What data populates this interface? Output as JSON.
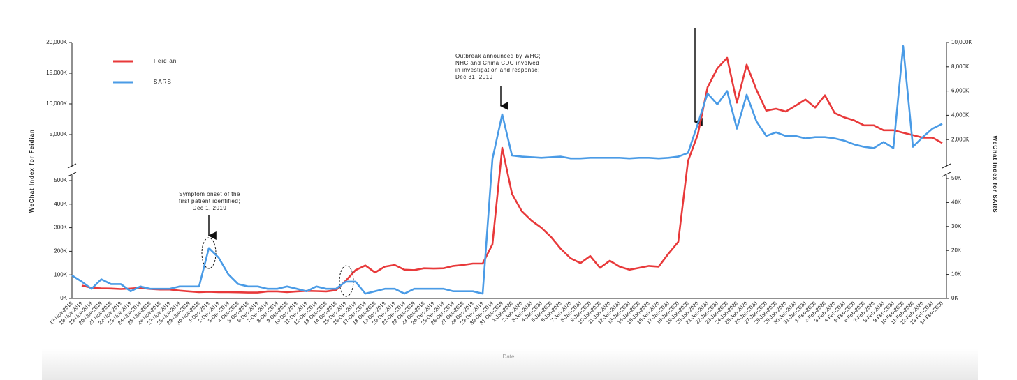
{
  "chart_data": {
    "type": "line",
    "x_label": "Date",
    "y_label": "WeChat Index for Feidian",
    "y2_label": "WeChat Index for SARS",
    "categories": [
      "17-Nov-2019",
      "18-Nov-2019",
      "19-Nov-2019",
      "20-Nov-2019",
      "21-Nov-2019",
      "22-Nov-2019",
      "23-Nov-2019",
      "24-Nov-2019",
      "25-Nov-2019",
      "26-Nov-2019",
      "27-Nov-2019",
      "28-Nov-2019",
      "29-Nov-2019",
      "30-Nov-2019",
      "1-Dec-2019",
      "2-Dec-2019",
      "3-Dec-2019",
      "4-Dec-2019",
      "5-Dec-2019",
      "6-Dec-2019",
      "7-Dec-2019",
      "8-Dec-2019",
      "9-Dec-2019",
      "10-Dec-2019",
      "11-Dec-2019",
      "12-Dec-2019",
      "13-Dec-2019",
      "14-Dec-2019",
      "15-Dec-2019",
      "16-Dec-2019",
      "17-Dec-2019",
      "18-Dec-2019",
      "19-Dec-2019",
      "20-Dec-2019",
      "21-Dec-2019",
      "22-Dec-2019",
      "23-Dec-2019",
      "24-Dec-2019",
      "25-Dec-2019",
      "26-Dec-2019",
      "27-Dec-2019",
      "28-Dec-2019",
      "29-Dec-2019",
      "30-Dec-2019",
      "31-Dec-2019",
      "1-Jan-2020",
      "2-Jan-2020",
      "3-Jan-2020",
      "4-Jan-2020",
      "5-Jan-2020",
      "6-Jan-2020",
      "7-Jan-2020",
      "8-Jan-2020",
      "9-Jan-2020",
      "10-Jan-2020",
      "11-Jan-2020",
      "12-Jan-2020",
      "13-Jan-2020",
      "14-Jan-2020",
      "15-Jan-2020",
      "16-Jan-2020",
      "17-Jan-2020",
      "18-Jan-2020",
      "19-Jan-2020",
      "20-Jan-2020",
      "21-Jan-2020",
      "22-Jan-2020",
      "23-Jan-2020",
      "24-Jan-2020",
      "25-Jan-2020",
      "26-Jan-2020",
      "27-Jan-2020",
      "28-Jan-2020",
      "29-Jan-2020",
      "30-Jan-2020",
      "31-Jan-2020",
      "1-Feb-2020",
      "2-Feb-2020",
      "3-Feb-2020",
      "4-Feb-2020",
      "5-Feb-2020",
      "6-Feb-2020",
      "7-Feb-2020",
      "8-Feb-2020",
      "9-Feb-2020",
      "10-Feb-2020",
      "11-Feb-2020",
      "12-Feb-2020",
      "13-Feb-2020",
      "14-Feb-2020"
    ],
    "series": [
      {
        "name": "Feidian",
        "color": "#e8393a",
        "axis": "y",
        "values": [
          null,
          55000,
          45000,
          43000,
          42000,
          40000,
          42000,
          45000,
          40000,
          38000,
          38000,
          33000,
          30000,
          27000,
          28000,
          27000,
          27000,
          26000,
          25000,
          25000,
          30000,
          30000,
          27000,
          30000,
          32000,
          31000,
          30000,
          35000,
          75000,
          120000,
          140000,
          110000,
          135000,
          142000,
          122000,
          120000,
          128000,
          127000,
          128000,
          138000,
          142000,
          148000,
          148000,
          230000,
          2840000,
          444000,
          370000,
          330000,
          300000,
          260000,
          210000,
          170000,
          150000,
          180000,
          130000,
          160000,
          135000,
          122000,
          130000,
          138000,
          135000,
          190000,
          240000,
          700000,
          5000000,
          12700000,
          15800000,
          17500000,
          10200000,
          16400000,
          12300000,
          8900000,
          9200000,
          8750000,
          9700000,
          10700000,
          9400000,
          11400000,
          8500000,
          7800000,
          7300000,
          6500000,
          6500000,
          5700000,
          5700000,
          5300000,
          4900000,
          4500000,
          4500000,
          3600000
        ]
      },
      {
        "name": "SARS",
        "color": "#4a9be6",
        "axis": "y2",
        "values": [
          9600,
          7000,
          4000,
          8000,
          6000,
          6000,
          3000,
          5000,
          4000,
          4000,
          4000,
          5000,
          5000,
          5000,
          21000,
          17000,
          10000,
          6000,
          5000,
          5000,
          4000,
          4000,
          5000,
          4000,
          3000,
          5000,
          4000,
          4000,
          7000,
          7000,
          2000,
          3000,
          4000,
          4000,
          2000,
          4000,
          4000,
          4000,
          4000,
          3000,
          3000,
          3000,
          2000,
          400000,
          4080000,
          690000,
          600000,
          550000,
          500000,
          550000,
          600000,
          450000,
          450000,
          500000,
          500000,
          500000,
          500000,
          450000,
          500000,
          500000,
          450000,
          500000,
          600000,
          900000,
          3300000,
          5800000,
          4900000,
          6000000,
          2900000,
          5700000,
          3500000,
          2300000,
          2600000,
          2300000,
          2300000,
          2100000,
          2200000,
          2200000,
          2100000,
          1900000,
          1600000,
          1400000,
          1300000,
          1800000,
          1300000,
          9700000,
          1400000,
          2200000,
          2900000,
          3300000
        ]
      }
    ],
    "ylim": [
      0,
      20000000
    ],
    "ybreak": 500000,
    "yticks": [
      {
        "value": 0,
        "label": "0K"
      },
      {
        "value": 100000,
        "label": "100K"
      },
      {
        "value": 200000,
        "label": "200K"
      },
      {
        "value": 300000,
        "label": "300K"
      },
      {
        "value": 400000,
        "label": "400K"
      },
      {
        "value": 500000,
        "label": "500K"
      },
      {
        "value": 5000000,
        "label": "5,000K"
      },
      {
        "value": 10000000,
        "label": "10,000K"
      },
      {
        "value": 15000000,
        "label": "15,000K"
      },
      {
        "value": 20000000,
        "label": "20,000K"
      }
    ],
    "y2lim": [
      0,
      10000000
    ],
    "y2break": 50000,
    "y2ticks": [
      {
        "value": 0,
        "label": "0K"
      },
      {
        "value": 10000,
        "label": "10K"
      },
      {
        "value": 20000,
        "label": "20K"
      },
      {
        "value": 30000,
        "label": "30K"
      },
      {
        "value": 40000,
        "label": "40K"
      },
      {
        "value": 50000,
        "label": "50K"
      },
      {
        "value": 2000000,
        "label": "2,000K"
      },
      {
        "value": 4000000,
        "label": "4,000K"
      },
      {
        "value": 6000000,
        "label": "6,000K"
      },
      {
        "value": 8000000,
        "label": "8,000K"
      },
      {
        "value": 10000000,
        "label": "10,000K"
      }
    ],
    "annotations": [
      {
        "lines": [
          "Symptom onset of the",
          "first  patient identified;",
          "Dec 1, 2019"
        ]
      },
      {
        "lines": [
          "Outbreak announced by WHC;",
          "NHC and China CDC involved",
          "in investigation and response;",
          "Dec 31, 2019"
        ]
      }
    ]
  }
}
